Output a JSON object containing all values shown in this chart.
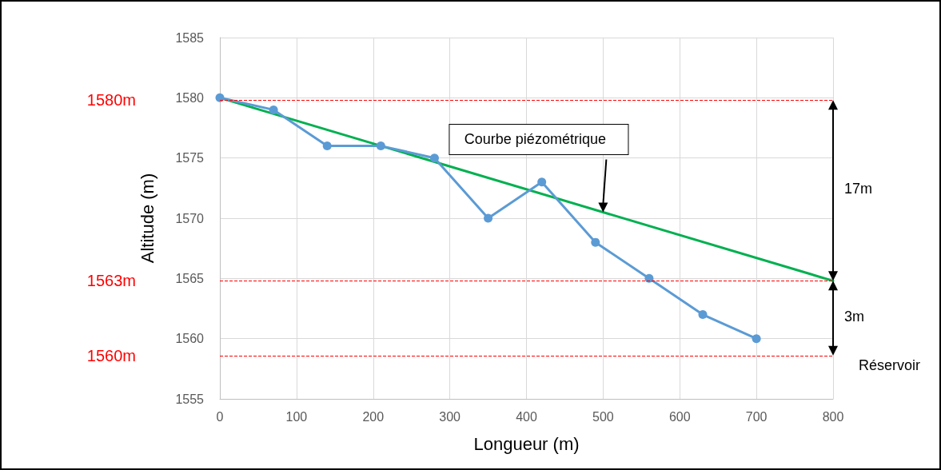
{
  "chart_data": {
    "type": "line",
    "xlabel": "Longueur (m)",
    "ylabel": "Altitude (m)",
    "xlim": [
      0,
      800
    ],
    "xticks": [
      0,
      100,
      200,
      300,
      400,
      500,
      600,
      700,
      800
    ],
    "ylim": [
      1555,
      1585
    ],
    "yticks": [
      1555,
      1560,
      1565,
      1570,
      1575,
      1580,
      1585
    ],
    "grid": true,
    "marker": "circle",
    "line_style": "solid",
    "series": [
      {
        "color": "#5b9bd5",
        "x": [
          0,
          70,
          140,
          210,
          280,
          350,
          420,
          490,
          560,
          630,
          700
        ],
        "values": [
          1580,
          1579,
          1576,
          1576,
          1575,
          1570,
          1573,
          1568,
          1565,
          1562,
          1560
        ]
      },
      {
        "color": "#00b050",
        "marker": "none",
        "x": [
          0,
          800
        ],
        "values": [
          1580,
          1564.8
        ]
      }
    ],
    "ref_lines": [
      {
        "axis": "y",
        "value": 1579.8,
        "label": "1580m",
        "color": "#ff0000",
        "line_style": "dashed"
      },
      {
        "axis": "y",
        "value": 1564.8,
        "label": "1563m",
        "color": "#ff0000",
        "line_style": "dashed"
      },
      {
        "axis": "y",
        "value": 1558.6,
        "label": "1560m",
        "color": "#ff0000",
        "line_style": "dashed"
      }
    ],
    "annotations": [
      "17m",
      "3m",
      "Courbe piézométrique",
      "Réservoir"
    ]
  }
}
